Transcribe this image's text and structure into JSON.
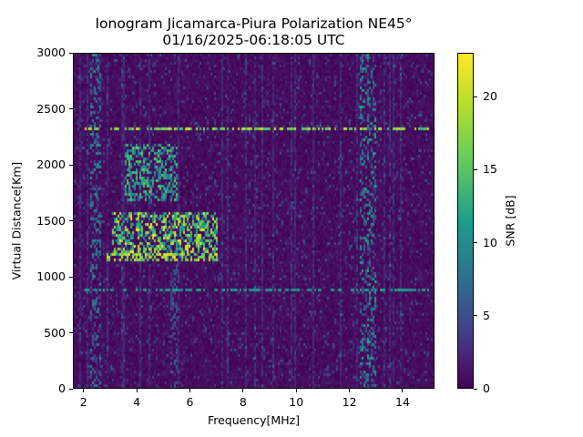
{
  "chart_data": {
    "type": "heatmap",
    "title": "Ionogram Jicamarca-Piura Polarization NE45°",
    "subtitle": "01/16/2025-06:18:05 UTC",
    "xlabel": "Frequency[MHz]",
    "ylabel": "Virtual Distance[Km]",
    "colorbar_label": "SNR [dB]",
    "colormap": "viridis",
    "xlim": [
      1.6,
      15.2
    ],
    "ylim": [
      0,
      3000
    ],
    "clim": [
      0,
      23
    ],
    "x_ticks": [
      2,
      4,
      6,
      8,
      10,
      12,
      14
    ],
    "y_ticks": [
      0,
      500,
      1000,
      1500,
      2000,
      2500,
      3000
    ],
    "colorbar_ticks": [
      0,
      5,
      10,
      15,
      20
    ],
    "grid": false,
    "features": [
      {
        "name": "F-layer echo trace (lower edge)",
        "freq_range_mhz": [
          2.8,
          7.0
        ],
        "distance_km": [
          1150,
          1230
        ],
        "snr_db": 22
      },
      {
        "name": "F-layer echo cloud",
        "freq_range_mhz": [
          3.0,
          7.0
        ],
        "distance_km": [
          1200,
          1600
        ],
        "snr_db": [
          10,
          23
        ]
      },
      {
        "name": "Diffuse echo region",
        "freq_range_mhz": [
          3.5,
          5.5
        ],
        "distance_km": [
          1700,
          2200
        ],
        "snr_db": [
          8,
          18
        ]
      },
      {
        "name": "Horizontal interference line",
        "freq_range_mhz": [
          2.0,
          15.0
        ],
        "distance_km": 2340,
        "snr_db": 22
      },
      {
        "name": "Horizontal interference line",
        "freq_range_mhz": [
          2.0,
          15.0
        ],
        "distance_km": 890,
        "snr_db": 14
      },
      {
        "name": "Vertical noise band",
        "freq_range_mhz": [
          2.2,
          2.6
        ],
        "distance_km": [
          0,
          3000
        ],
        "snr_db": [
          3,
          12
        ]
      },
      {
        "name": "Vertical noise band",
        "freq_range_mhz": [
          12.4,
          13.0
        ],
        "distance_km": [
          0,
          3000
        ],
        "snr_db": [
          3,
          14
        ]
      },
      {
        "name": "Vertical noise band",
        "freq_range_mhz": [
          5.2,
          5.5
        ],
        "distance_km": [
          0,
          1300
        ],
        "snr_db": [
          3,
          8
        ]
      }
    ],
    "background_snr_db": [
      0,
      4
    ]
  }
}
